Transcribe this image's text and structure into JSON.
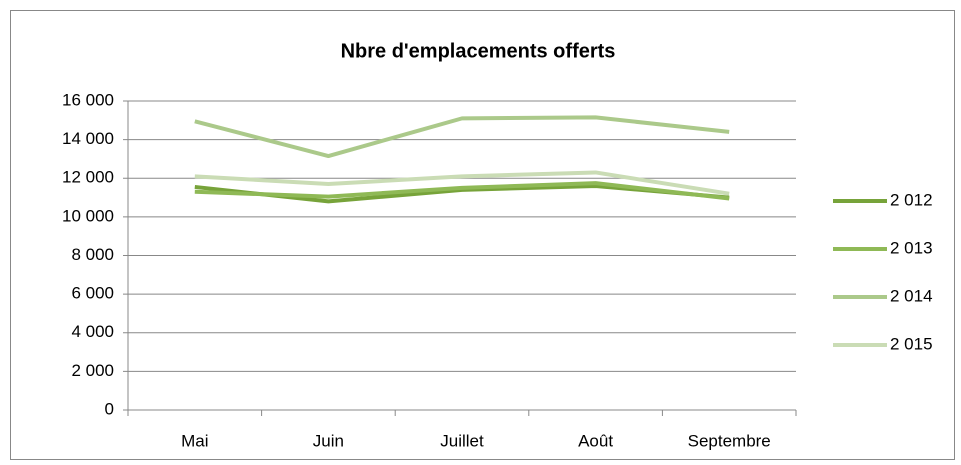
{
  "chart_data": {
    "type": "line",
    "title": "Nbre d'emplacements offerts",
    "categories": [
      "Mai",
      "Juin",
      "Juillet",
      "Août",
      "Septembre"
    ],
    "series": [
      {
        "name": "2 012",
        "color": "#77a33a",
        "values": [
          11550,
          10800,
          11400,
          11600,
          11000
        ]
      },
      {
        "name": "2 013",
        "color": "#8fb956",
        "values": [
          11300,
          11050,
          11500,
          11750,
          10950
        ]
      },
      {
        "name": "2 014",
        "color": "#abc98a",
        "values": [
          14950,
          13150,
          15100,
          15150,
          14400
        ]
      },
      {
        "name": "2 015",
        "color": "#cadcb5",
        "values": [
          12100,
          11700,
          12100,
          12300,
          11200
        ]
      }
    ],
    "ylim": [
      0,
      16000
    ],
    "yticks": [
      0,
      {
        "value": 2000,
        "label": "2 000"
      },
      {
        "value": 4000,
        "label": "4 000"
      },
      {
        "value": 6000,
        "label": "6 000"
      },
      {
        "value": 8000,
        "label": "8 000"
      },
      {
        "value": 10000,
        "label": "10 000"
      },
      {
        "value": 12000,
        "label": "12 000"
      },
      {
        "value": 14000,
        "label": "14 000"
      },
      {
        "value": 16000,
        "label": "16 000"
      }
    ],
    "grid": true,
    "legend": "right"
  }
}
